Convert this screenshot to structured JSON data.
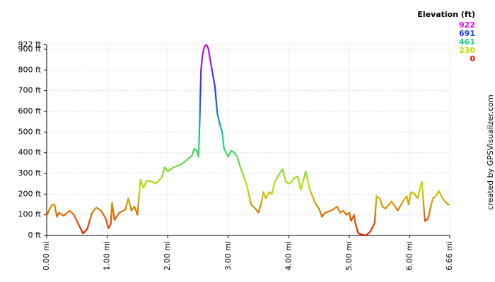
{
  "chart_data": {
    "type": "line",
    "legend_title": "Elevation (ft)",
    "credit": "created by GPSVisualizer.com",
    "color_scale": [
      {
        "value": 922,
        "color": "#dd00dd"
      },
      {
        "value": 691,
        "color": "#1a3cff"
      },
      {
        "value": 461,
        "color": "#10d880"
      },
      {
        "value": 230,
        "color": "#c8dc00"
      },
      {
        "value": 0,
        "color": "#ee1100"
      }
    ],
    "x": [
      0,
      0.05,
      0.1,
      0.13,
      0.17,
      0.2,
      0.28,
      0.38,
      0.45,
      0.55,
      0.6,
      0.67,
      0.75,
      0.82,
      0.9,
      0.98,
      1.02,
      1.06,
      1.08,
      1.12,
      1.2,
      1.3,
      1.35,
      1.4,
      1.45,
      1.5,
      1.55,
      1.6,
      1.65,
      1.75,
      1.8,
      1.9,
      1.95,
      2.0,
      2.1,
      2.2,
      2.3,
      2.35,
      2.4,
      2.44,
      2.48,
      2.51,
      2.53,
      2.55,
      2.58,
      2.61,
      2.64,
      2.67,
      2.72,
      2.78,
      2.82,
      2.86,
      2.9,
      2.93,
      3.0,
      3.05,
      3.1,
      3.15,
      3.2,
      3.3,
      3.38,
      3.45,
      3.5,
      3.55,
      3.58,
      3.62,
      3.68,
      3.72,
      3.77,
      3.85,
      3.9,
      3.95,
      4.0,
      4.05,
      4.1,
      4.15,
      4.2,
      4.28,
      4.35,
      4.45,
      4.5,
      4.55,
      4.6,
      4.7,
      4.8,
      4.85,
      4.9,
      4.95,
      5.0,
      5.03,
      5.08,
      5.1,
      5.15,
      5.2,
      5.28,
      5.35,
      5.42,
      5.45,
      5.5,
      5.55,
      5.6,
      5.7,
      5.8,
      5.9,
      5.95,
      5.98,
      6.02,
      6.08,
      6.13,
      6.18,
      6.2,
      6.25,
      6.3,
      6.38,
      6.43,
      6.48,
      6.55,
      6.63,
      6.66
    ],
    "values": [
      95,
      130,
      150,
      150,
      90,
      110,
      95,
      120,
      100,
      40,
      10,
      30,
      110,
      135,
      120,
      80,
      35,
      55,
      160,
      75,
      110,
      125,
      180,
      120,
      140,
      100,
      270,
      230,
      265,
      260,
      250,
      280,
      330,
      310,
      330,
      340,
      360,
      375,
      385,
      420,
      410,
      380,
      560,
      800,
      880,
      915,
      922,
      905,
      820,
      720,
      590,
      540,
      500,
      420,
      380,
      410,
      400,
      380,
      330,
      250,
      150,
      130,
      110,
      160,
      210,
      180,
      210,
      200,
      260,
      300,
      320,
      260,
      250,
      260,
      280,
      285,
      220,
      310,
      220,
      150,
      130,
      90,
      110,
      120,
      140,
      110,
      120,
      100,
      110,
      70,
      100,
      60,
      10,
      5,
      0,
      20,
      60,
      190,
      180,
      140,
      130,
      165,
      120,
      170,
      190,
      150,
      210,
      200,
      180,
      240,
      260,
      70,
      80,
      180,
      190,
      215,
      175,
      150,
      150
    ],
    "xlim": [
      0,
      6.66
    ],
    "ylim": [
      0,
      922
    ],
    "xticks": [
      {
        "value": 0,
        "label": "0.00 mi"
      },
      {
        "value": 1,
        "label": "1.00 mi"
      },
      {
        "value": 2,
        "label": "2.00 mi"
      },
      {
        "value": 3,
        "label": "3.00 mi"
      },
      {
        "value": 4,
        "label": "4.00 mi"
      },
      {
        "value": 5,
        "label": "5.00 mi"
      },
      {
        "value": 6,
        "label": "6.00 mi"
      },
      {
        "value": 6.66,
        "label": "6.66 mi"
      }
    ],
    "yticks": [
      {
        "value": 0,
        "label": "0 ft"
      },
      {
        "value": 100,
        "label": "100 ft"
      },
      {
        "value": 200,
        "label": "200 ft"
      },
      {
        "value": 300,
        "label": "300 ft"
      },
      {
        "value": 400,
        "label": "400 ft"
      },
      {
        "value": 500,
        "label": "500 ft"
      },
      {
        "value": 600,
        "label": "600 ft"
      },
      {
        "value": 700,
        "label": "700 ft"
      },
      {
        "value": 800,
        "label": "800 ft"
      },
      {
        "value": 900,
        "label": "900 ft"
      },
      {
        "value": 922,
        "label": "922 ft"
      }
    ],
    "grid": true
  }
}
